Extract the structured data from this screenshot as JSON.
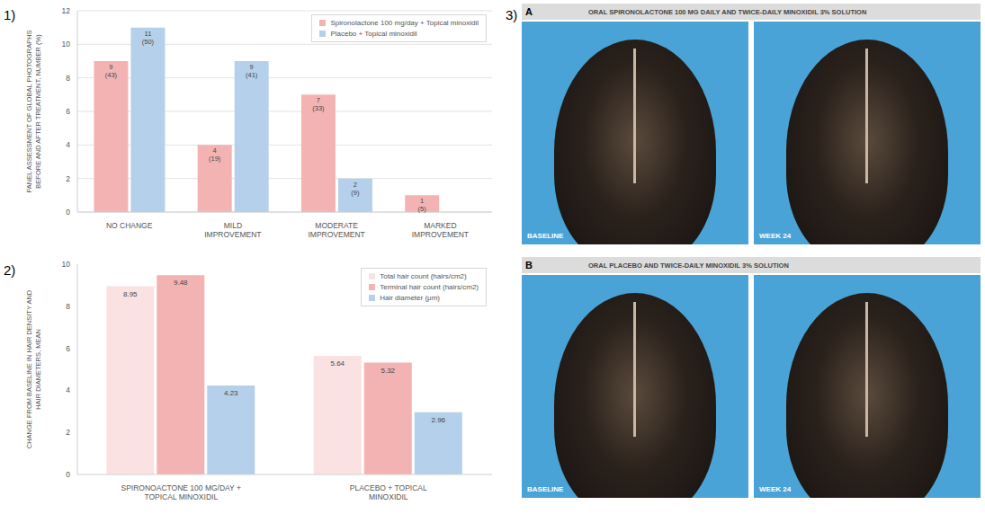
{
  "chart_data": [
    {
      "type": "bar",
      "annotations": [
        "1)"
      ],
      "ylabel": "PANEL ASSESSMENT OF GLOBAL PHOTOGRAPHS BEFORE AND AFTER TREATMENT, NUMBER (%)",
      "categories": [
        "NO CHANGE",
        "MILD IMPROVEMENT",
        "MODERATE IMPROVEMENT",
        "MARKED IMPROVEMENT"
      ],
      "series": [
        {
          "name": "Spironolactone 100 mg/day + Topical minoxidil",
          "color": "#f4b3b3",
          "values": [
            9,
            4,
            7,
            1
          ],
          "value_labels": [
            "9 (43)",
            "4 (19)",
            "7 (33)",
            "1 (5)"
          ]
        },
        {
          "name": "Placebo + Topical minoxidil",
          "color": "#b5d0ea",
          "values": [
            11,
            9,
            2,
            0
          ],
          "value_labels": [
            "11 (50)",
            "9 (41)",
            "2 (9)",
            null
          ]
        }
      ],
      "ylim": [
        0,
        12
      ],
      "yticks": [
        0,
        2,
        4,
        6,
        8,
        10,
        12
      ],
      "grid": true,
      "legend": "upper right",
      "data_labels": true
    },
    {
      "type": "bar",
      "annotations": [
        "2)"
      ],
      "ylabel": "CHANGE FROM BASELINE IN HAIR DENSITY AND HAIR DIAMETERS, MEAN",
      "categories": [
        "SPIRONOACTONE 100 MG/DAY + TOPICAL MINOXIDIL",
        "PLACEBO + TOPICAL MINOXIDIL"
      ],
      "series": [
        {
          "name": "Total hair count (hairs/cm2)",
          "color": "#fbe2e2",
          "values": [
            8.95,
            5.64
          ]
        },
        {
          "name": "Terminal hair count (hairs/cm2)",
          "color": "#f4b3b3",
          "values": [
            9.48,
            5.32
          ]
        },
        {
          "name": "Hair diameter (μm)",
          "color": "#b5d0ea",
          "values": [
            4.23,
            2.96
          ]
        }
      ],
      "ylim": [
        0,
        10
      ],
      "yticks": [
        0,
        2,
        4,
        6,
        8,
        10
      ],
      "grid": false,
      "legend": "upper right",
      "data_labels": true
    }
  ],
  "photo_figure": {
    "label": "3)",
    "panels": [
      {
        "letter": "A",
        "title": "ORAL SPIRONOLACTONE 100 MG DAILY AND TWICE-DAILY MINOXIDIL 3% SOLUTION",
        "photo_labels": [
          "BASELINE",
          "WEEK 24"
        ]
      },
      {
        "letter": "B",
        "title": "ORAL PLACEBO AND TWICE-DAILY MINOXIDIL 3% SOLUTION",
        "photo_labels": [
          "BASELINE",
          "WEEK 24"
        ]
      }
    ]
  }
}
